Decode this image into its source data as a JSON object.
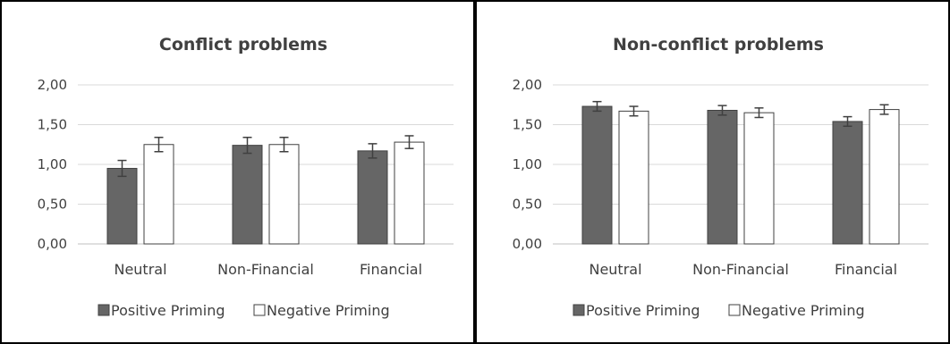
{
  "chart_data": [
    {
      "type": "bar",
      "title": "Conflict problems",
      "categories": [
        "Neutral",
        "Non-Financial",
        "Financial"
      ],
      "series": [
        {
          "name": "Positive Priming",
          "values": [
            0.95,
            1.24,
            1.17
          ],
          "error": [
            0.1,
            0.1,
            0.09
          ],
          "color": "#666666"
        },
        {
          "name": "Negative Priming",
          "values": [
            1.25,
            1.25,
            1.28
          ],
          "error": [
            0.09,
            0.09,
            0.08
          ],
          "color": "#ffffff"
        }
      ],
      "ylim": [
        0,
        2
      ],
      "yticks": [
        "0,00",
        "0,50",
        "1,00",
        "1,50",
        "2,00"
      ],
      "grid": true,
      "legend": "bottom",
      "xlabel": "",
      "ylabel": ""
    },
    {
      "type": "bar",
      "title": "Non-conflict problems",
      "categories": [
        "Neutral",
        "Non-Financial",
        "Financial"
      ],
      "series": [
        {
          "name": "Positive Priming",
          "values": [
            1.73,
            1.68,
            1.54
          ],
          "error": [
            0.06,
            0.06,
            0.06
          ],
          "color": "#666666"
        },
        {
          "name": "Negative Priming",
          "values": [
            1.67,
            1.65,
            1.69
          ],
          "error": [
            0.06,
            0.06,
            0.06
          ],
          "color": "#ffffff"
        }
      ],
      "ylim": [
        0,
        2
      ],
      "yticks": [
        "0,00",
        "0,50",
        "1,00",
        "1,50",
        "2,00"
      ],
      "grid": true,
      "legend": "bottom",
      "xlabel": "",
      "ylabel": ""
    }
  ]
}
